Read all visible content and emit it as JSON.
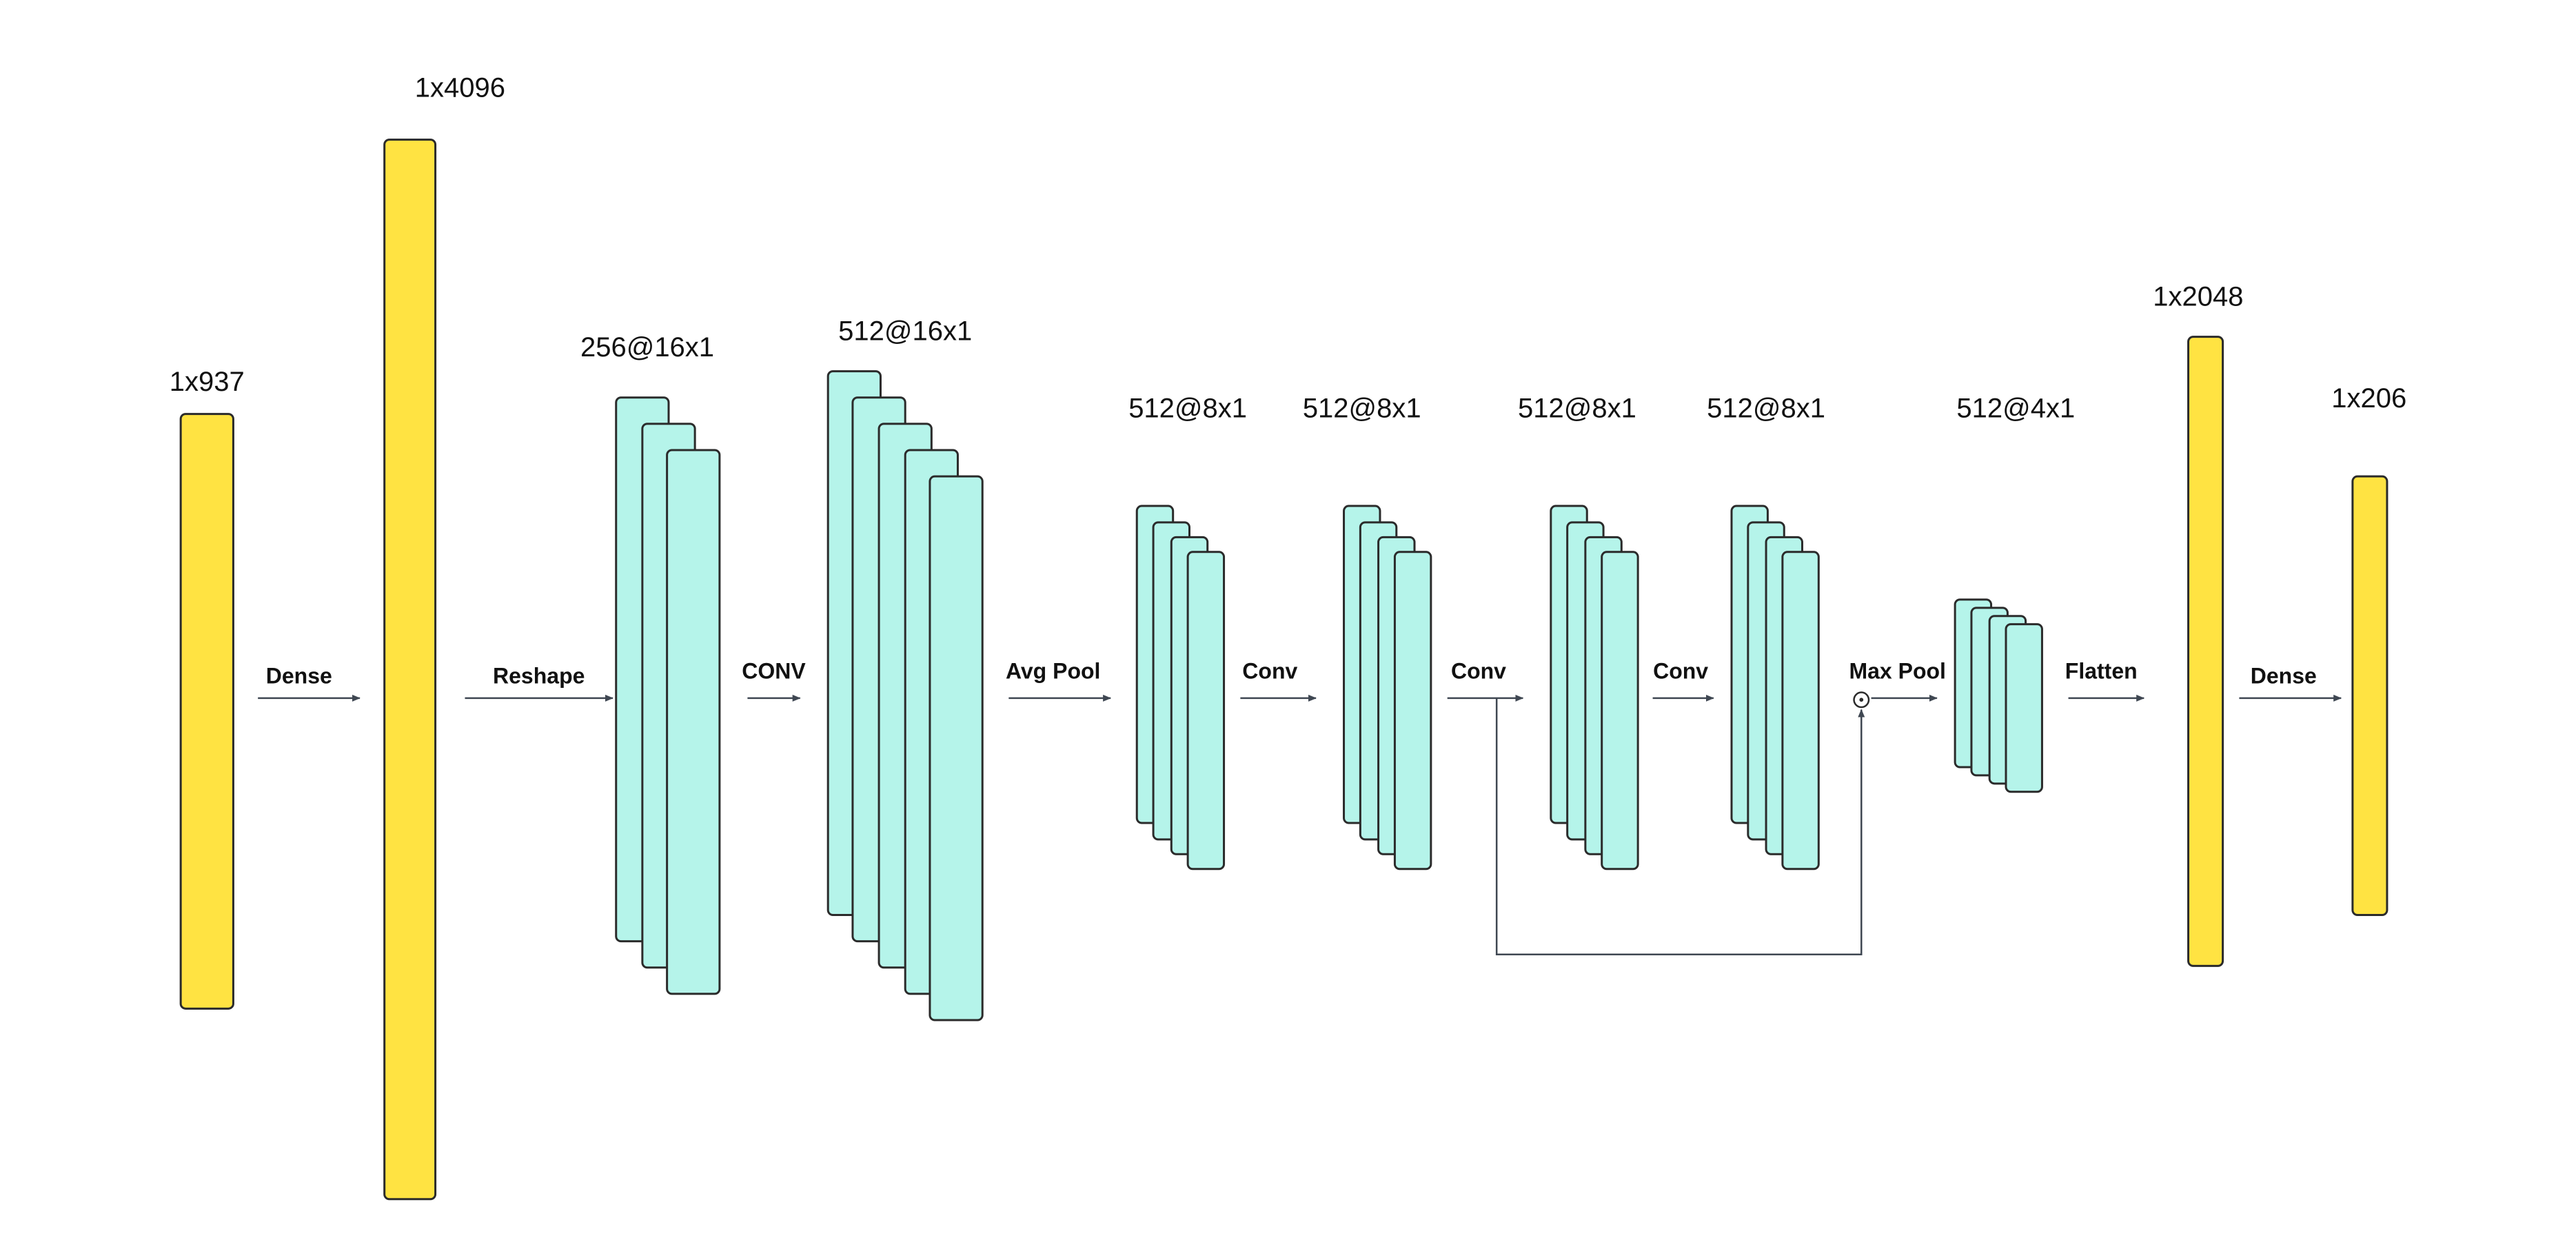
{
  "colors": {
    "dense": "#FFE342",
    "conv": "#B5F4EA",
    "outline": "#2b2b2b",
    "arrow": "#3f4752"
  },
  "layers": [
    {
      "id": "input",
      "kind": "dense",
      "label": "1x937"
    },
    {
      "id": "dense1",
      "kind": "dense",
      "label": "1x4096"
    },
    {
      "id": "reshape",
      "kind": "conv",
      "label": "256@16x1",
      "feature_maps_drawn": 3
    },
    {
      "id": "conv1",
      "kind": "conv",
      "label": "512@16x1",
      "feature_maps_drawn": 5
    },
    {
      "id": "pool1",
      "kind": "conv",
      "label": "512@8x1",
      "feature_maps_drawn": 4
    },
    {
      "id": "conv2",
      "kind": "conv",
      "label": "512@8x1",
      "feature_maps_drawn": 4
    },
    {
      "id": "conv3",
      "kind": "conv",
      "label": "512@8x1",
      "feature_maps_drawn": 4
    },
    {
      "id": "conv4",
      "kind": "conv",
      "label": "512@8x1",
      "feature_maps_drawn": 4
    },
    {
      "id": "pool2",
      "kind": "conv",
      "label": "512@4x1",
      "feature_maps_drawn": 4
    },
    {
      "id": "flatten",
      "kind": "dense",
      "label": "1x2048"
    },
    {
      "id": "output",
      "kind": "dense",
      "label": "1x206"
    }
  ],
  "operations": [
    {
      "id": "op-dense-1",
      "label": "Dense"
    },
    {
      "id": "op-reshape",
      "label": "Reshape"
    },
    {
      "id": "op-conv-1",
      "label": "CONV"
    },
    {
      "id": "op-avg-pool",
      "label": "Avg Pool"
    },
    {
      "id": "op-conv-2",
      "label": "Conv"
    },
    {
      "id": "op-conv-3",
      "label": "Conv"
    },
    {
      "id": "op-conv-4",
      "label": "Conv"
    },
    {
      "id": "op-max-pool",
      "label": "Max Pool"
    },
    {
      "id": "op-flatten",
      "label": "Flatten"
    },
    {
      "id": "op-dense-2",
      "label": "Dense"
    }
  ],
  "skip_connection": {
    "from": "op-conv-3",
    "to": "op-max-pool",
    "merge_symbol": "⊙"
  }
}
